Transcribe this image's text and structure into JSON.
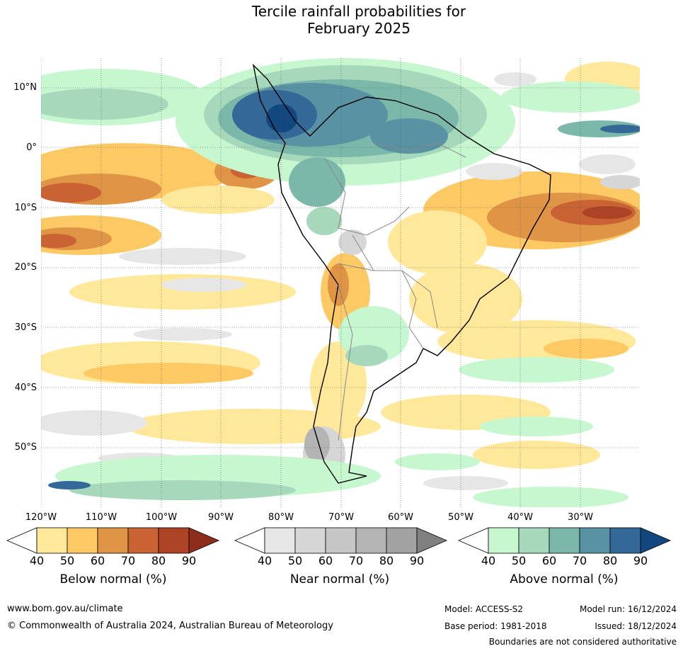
{
  "header": {
    "title_line1": "Tercile rainfall probabilities for",
    "title_line2": "February 2025"
  },
  "map": {
    "lat_labels": [
      "10°N",
      "0°",
      "10°S",
      "20°S",
      "30°S",
      "40°S",
      "50°S"
    ],
    "lon_labels": [
      "120°W",
      "110°W",
      "100°W",
      "90°W",
      "80°W",
      "70°W",
      "60°W",
      "50°W",
      "40°W",
      "30°W"
    ]
  },
  "colorbars": {
    "below": {
      "title": "Below normal (%)",
      "ticks": [
        "40",
        "50",
        "60",
        "70",
        "80",
        "90"
      ],
      "colors": [
        "#ffffff",
        "#ffe89a",
        "#fdc964",
        "#e09446",
        "#c96334",
        "#ad4325",
        "#8e2d1c"
      ]
    },
    "near": {
      "title": "Near normal (%)",
      "ticks": [
        "40",
        "50",
        "60",
        "70",
        "80",
        "90"
      ],
      "colors": [
        "#ffffff",
        "#e6e6e6",
        "#d6d6d6",
        "#c6c6c6",
        "#b4b4b4",
        "#a2a2a2",
        "#808080"
      ]
    },
    "above": {
      "title": "Above normal (%)",
      "ticks": [
        "40",
        "50",
        "60",
        "70",
        "80",
        "90"
      ],
      "colors": [
        "#ffffff",
        "#c6f7cf",
        "#a6d9bc",
        "#7cb8aa",
        "#5993a3",
        "#346896",
        "#12487f"
      ]
    }
  },
  "footer": {
    "website": "www.bom.gov.au/climate",
    "copyright": "© Commonwealth of Australia 2024, Australian Bureau of Meteorology",
    "model": "Model: ACCESS-S2",
    "base_period": "Base period: 1981-2018",
    "model_run": "Model run: 16/12/2024",
    "issued": "Issued: 18/12/2024",
    "disclaimer": "Boundaries are not considered authoritative"
  }
}
